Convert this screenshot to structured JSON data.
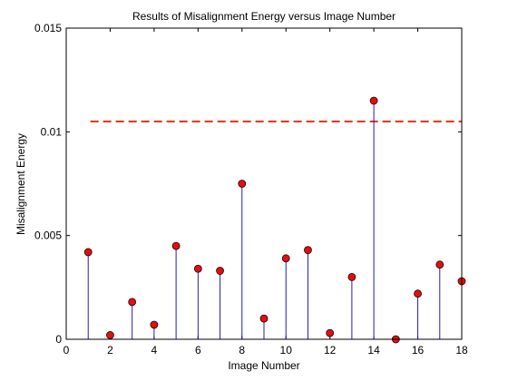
{
  "chart_data": {
    "type": "stem",
    "title": "Results of Misalignment Energy versus Image Number",
    "xlabel": "Image Number",
    "ylabel": "Misalignment Energy",
    "xlim": [
      0,
      18
    ],
    "ylim": [
      0,
      0.015
    ],
    "xticks": [
      0,
      2,
      4,
      6,
      8,
      10,
      12,
      14,
      16,
      18
    ],
    "xtick_labels": [
      "0",
      "2",
      "4",
      "6",
      "8",
      "10",
      "12",
      "14",
      "16",
      "18"
    ],
    "yticks": [
      0,
      0.005,
      0.01,
      0.015
    ],
    "ytick_labels": [
      "0",
      "0.005",
      "0.01",
      "0.015"
    ],
    "grid": false,
    "series": [
      {
        "x": [
          1,
          2,
          3,
          4,
          5,
          6,
          7,
          8,
          9,
          10,
          11,
          12,
          13,
          14,
          15,
          16,
          17,
          18
        ],
        "values": [
          0.0042,
          0.0002,
          0.0018,
          0.0007,
          0.0045,
          0.0034,
          0.0033,
          0.0075,
          0.001,
          0.0039,
          0.0043,
          0.0003,
          0.003,
          0.0115,
          0.0,
          0.0022,
          0.0036,
          0.0028
        ],
        "stem_color": "#1f1fb4",
        "marker_color": "#e01010"
      }
    ],
    "threshold": {
      "value": 0.0105,
      "x_range": [
        1.1,
        18
      ],
      "color": "#e0300a",
      "style": "dashed"
    }
  }
}
